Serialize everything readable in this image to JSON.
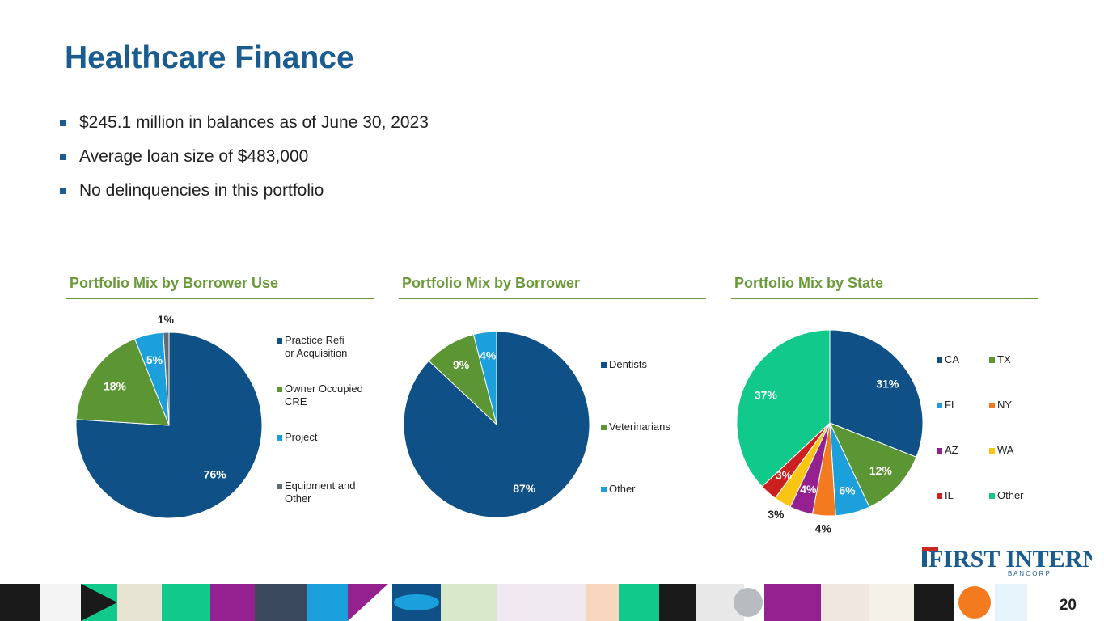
{
  "slide": {
    "title": "Healthcare Finance",
    "bullets": [
      "$245.1 million in balances as of June 30, 2023",
      "Average loan size of $483,000",
      "No delinquencies in this portfolio"
    ],
    "page_number": "20",
    "logo": {
      "line1": "FIRST INTERNET",
      "line2": "B A N C O R P"
    }
  },
  "colors": {
    "title": "#1a5c8e",
    "heading": "#6a9a3a",
    "navy": "#0f5086",
    "green": "#5c9634",
    "cyan": "#1ba0dc",
    "gray": "#5f6b75",
    "orange": "#f47a20",
    "purple": "#94218f",
    "yellow": "#f9c513",
    "red": "#cc1f1f",
    "teal": "#12c98c"
  },
  "chart_data": [
    {
      "type": "pie",
      "title": "Portfolio Mix by Borrower Use",
      "categories": [
        "Practice Refi or Acquisition",
        "Owner Occupied CRE",
        "Project",
        "Equipment and Other"
      ],
      "values": [
        76,
        18,
        5,
        1
      ],
      "labels": [
        "76%",
        "18%",
        "5%",
        "1%"
      ],
      "colors": [
        "#0f5086",
        "#5c9634",
        "#1ba0dc",
        "#5f6b75"
      ],
      "legend": "right"
    },
    {
      "type": "pie",
      "title": "Portfolio Mix by Borrower",
      "categories": [
        "Dentists",
        "Veterinarians",
        "Other"
      ],
      "values": [
        87,
        9,
        4
      ],
      "labels": [
        "87%",
        "9%",
        "4%"
      ],
      "colors": [
        "#0f5086",
        "#5c9634",
        "#1ba0dc"
      ],
      "legend": "right"
    },
    {
      "type": "pie",
      "title": "Portfolio Mix by State",
      "categories": [
        "CA",
        "TX",
        "FL",
        "NY",
        "AZ",
        "WA",
        "IL",
        "Other"
      ],
      "values": [
        31,
        12,
        6,
        4,
        4,
        3,
        3,
        37
      ],
      "labels": [
        "31%",
        "12%",
        "6%",
        "4%",
        "4%",
        "3%",
        "3%",
        "37%"
      ],
      "colors": [
        "#0f5086",
        "#5c9634",
        "#1ba0dc",
        "#f47a20",
        "#94218f",
        "#f9c513",
        "#cc1f1f",
        "#12c98c"
      ],
      "legend": "right-two-column"
    }
  ]
}
